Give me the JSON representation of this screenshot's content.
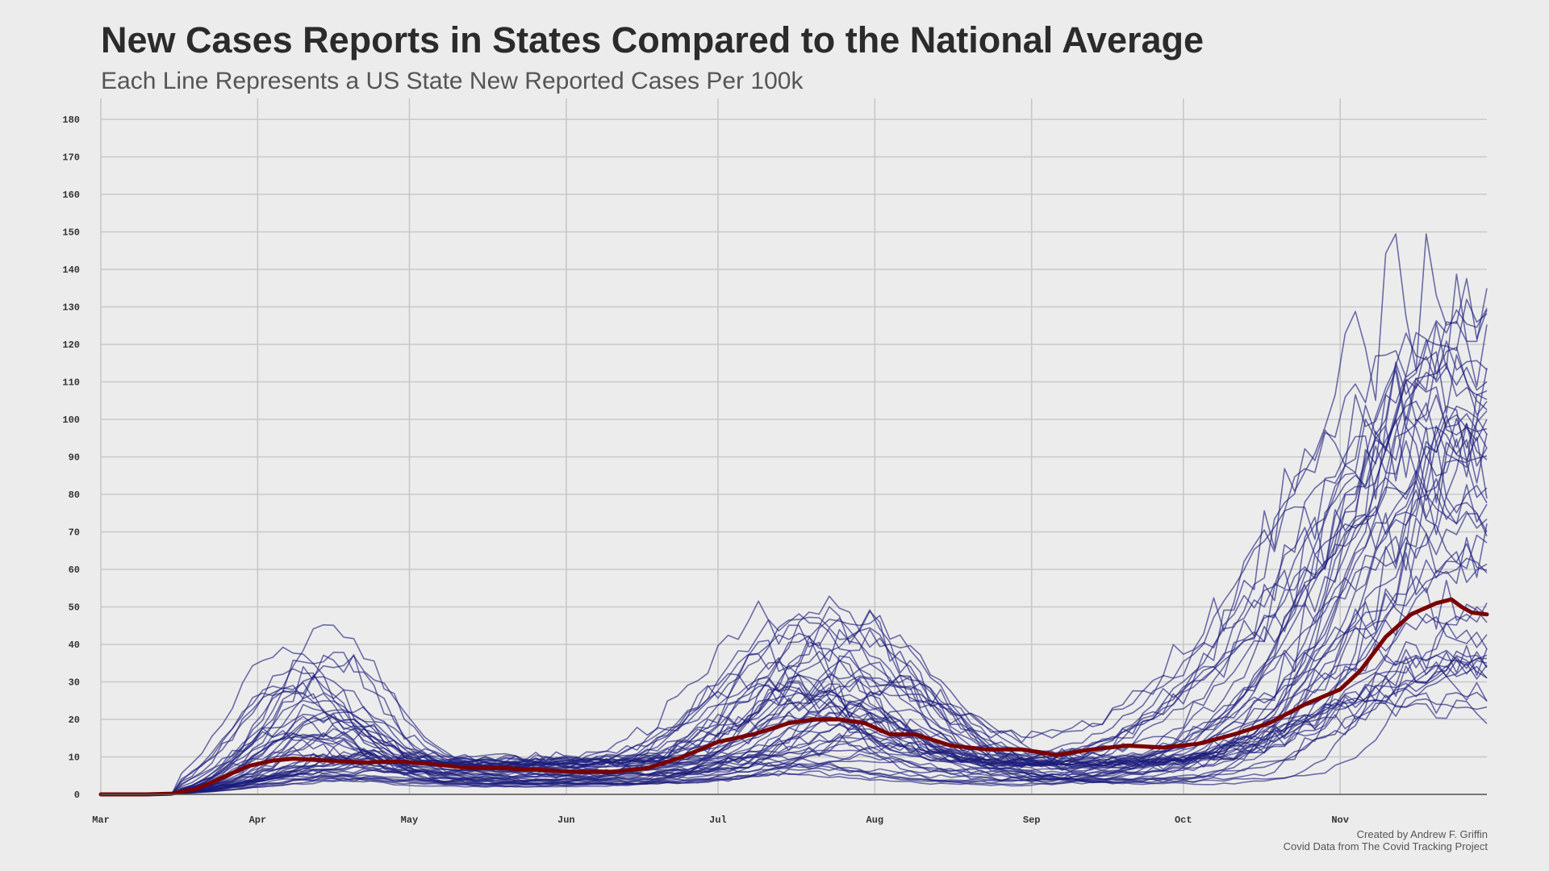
{
  "header": {
    "title": "New Cases Reports in States Compared to the National Average",
    "subtitle": "Each Line Represents a US State New Reported Cases Per 100k"
  },
  "caption": {
    "line1": "Created by Andrew F. Griffin",
    "line2": "Covid Data from The Covid Tracking Project"
  },
  "colors": {
    "background": "#ececec",
    "grid": "#c8c8c8",
    "state_line": "#1c1c7a",
    "national_line": "#7a0000"
  },
  "chart_data": {
    "type": "line",
    "title": "New Cases Reports in States Compared to the National Average",
    "subtitle": "Each Line Represents a US State New Reported Cases Per 100k",
    "xlabel": "",
    "ylabel": "",
    "x_range": [
      "2020-03-01",
      "2020-11-30"
    ],
    "ylim": [
      0,
      185
    ],
    "grid": true,
    "legend": "none",
    "x_ticks": [
      {
        "date": "2020-03-01",
        "label": "Mar"
      },
      {
        "date": "2020-04-01",
        "label": "Apr"
      },
      {
        "date": "2020-05-01",
        "label": "May"
      },
      {
        "date": "2020-06-01",
        "label": "Jun"
      },
      {
        "date": "2020-07-01",
        "label": "Jul"
      },
      {
        "date": "2020-08-01",
        "label": "Aug"
      },
      {
        "date": "2020-09-01",
        "label": "Sep"
      },
      {
        "date": "2020-10-01",
        "label": "Oct"
      },
      {
        "date": "2020-11-01",
        "label": "Nov"
      }
    ],
    "y_ticks": [
      0,
      10,
      20,
      30,
      40,
      50,
      60,
      70,
      80,
      90,
      100,
      110,
      120,
      130,
      140,
      150,
      160,
      170,
      180
    ],
    "national_average": {
      "dates": [
        "2020-03-01",
        "2020-03-10",
        "2020-03-15",
        "2020-03-20",
        "2020-03-25",
        "2020-03-30",
        "2020-04-04",
        "2020-04-08",
        "2020-04-15",
        "2020-04-22",
        "2020-04-29",
        "2020-05-06",
        "2020-05-13",
        "2020-05-20",
        "2020-05-27",
        "2020-06-03",
        "2020-06-10",
        "2020-06-17",
        "2020-06-24",
        "2020-07-01",
        "2020-07-08",
        "2020-07-15",
        "2020-07-20",
        "2020-07-25",
        "2020-07-30",
        "2020-08-04",
        "2020-08-09",
        "2020-08-16",
        "2020-08-23",
        "2020-08-30",
        "2020-09-06",
        "2020-09-13",
        "2020-09-20",
        "2020-09-27",
        "2020-10-04",
        "2020-10-11",
        "2020-10-18",
        "2020-10-25",
        "2020-11-01",
        "2020-11-05",
        "2020-11-10",
        "2020-11-15",
        "2020-11-20",
        "2020-11-23",
        "2020-11-25",
        "2020-11-27",
        "2020-11-30"
      ],
      "values": [
        0,
        0,
        0.2,
        1.5,
        4.5,
        7.5,
        9,
        9.5,
        9,
        8.5,
        8.8,
        8,
        7,
        7,
        6.5,
        6,
        6,
        7,
        10,
        14,
        16,
        19,
        20,
        20,
        19,
        16,
        16,
        13,
        12,
        12,
        10.5,
        12,
        13,
        12.5,
        13.5,
        16,
        19,
        24,
        28,
        33,
        42,
        48,
        51,
        52,
        50,
        48.5,
        48
      ]
    },
    "state_series_note": "",
    "state_lines_shown": 51
  }
}
